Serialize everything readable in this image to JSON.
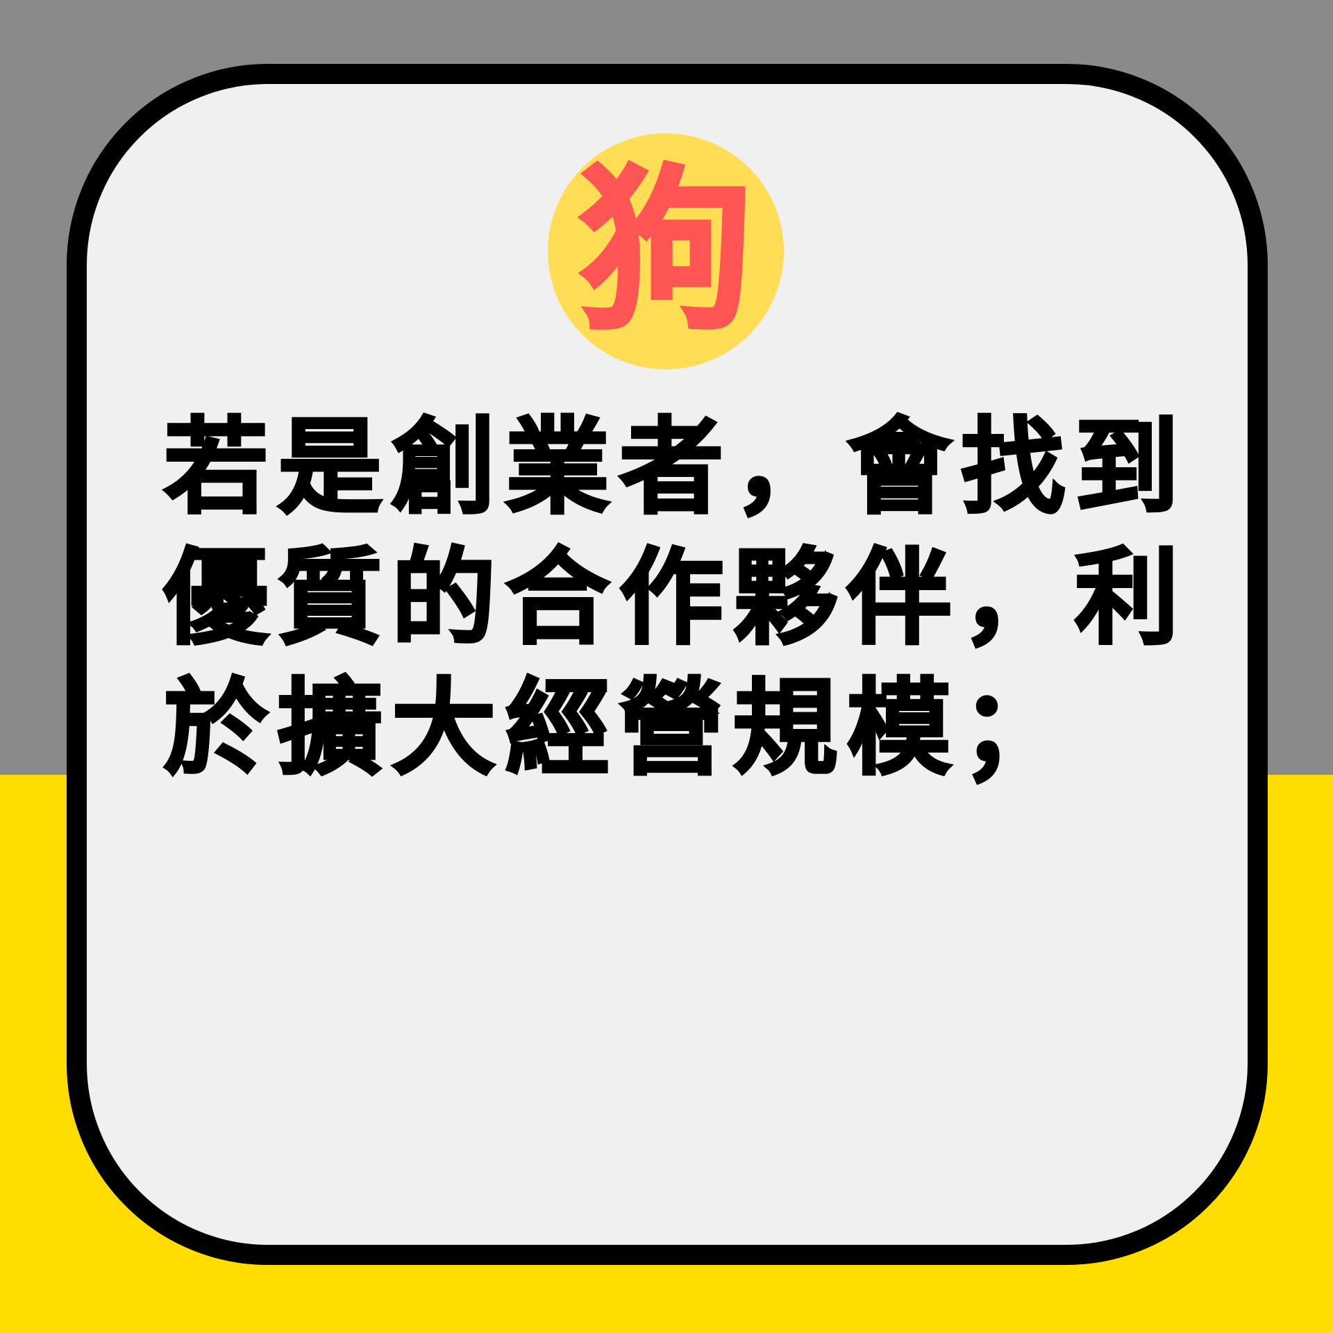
{
  "colors": {
    "background_top": "#8a8a8a",
    "background_bottom": "#ffdd00",
    "card_fill": "#f0f0f0",
    "card_border": "#000000",
    "badge_fill": "#ffdd55",
    "badge_text": "#ff5555",
    "message_text": "#000000"
  },
  "badge": {
    "character": "狗"
  },
  "message": {
    "text": "若是創業者，會找到優質的合作夥伴，利於擴大經營規模；"
  }
}
